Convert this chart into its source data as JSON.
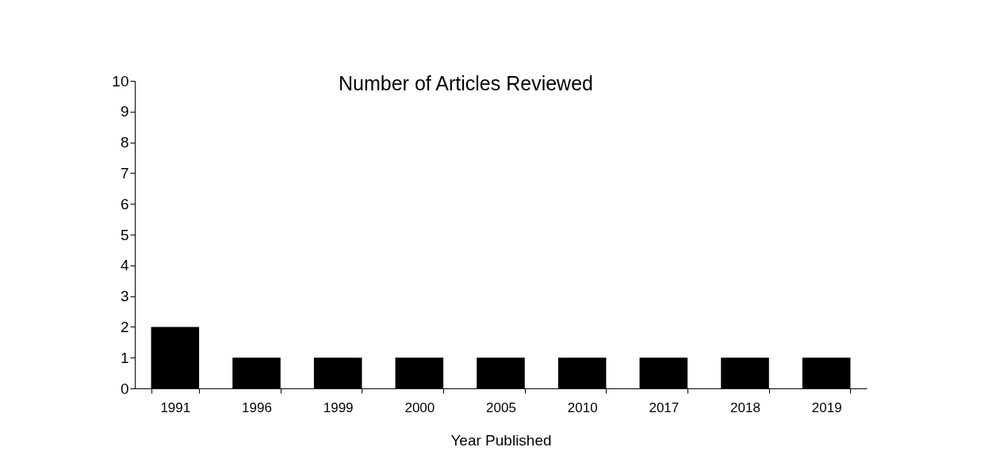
{
  "chart_data": {
    "type": "bar",
    "title": "Number of Articles Reviewed",
    "xlabel": "Year Published",
    "categories": [
      "1991",
      "1996",
      "1999",
      "2000",
      "2005",
      "2010",
      "2017",
      "2018",
      "2019"
    ],
    "values": [
      2,
      1,
      1,
      1,
      1,
      1,
      1,
      1,
      1
    ],
    "color": "#000000",
    "ylim": [
      0,
      10
    ],
    "yticks": [
      0,
      1,
      2,
      3,
      4,
      5,
      6,
      7,
      8,
      9,
      10
    ],
    "grid": false
  }
}
